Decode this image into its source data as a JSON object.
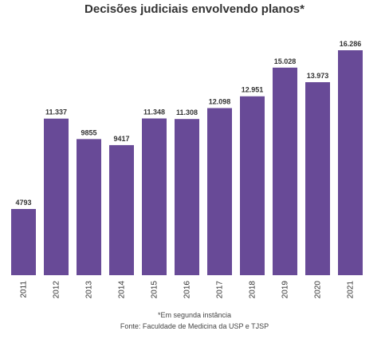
{
  "chart_data": {
    "type": "bar",
    "title": "Decisões judiciais envolvendo planos*",
    "categories": [
      "2011",
      "2012",
      "2013",
      "2014",
      "2015",
      "2016",
      "2017",
      "2018",
      "2019",
      "2020",
      "2021"
    ],
    "values": [
      4793,
      11337,
      9855,
      9417,
      11348,
      11308,
      12098,
      12951,
      15028,
      13973,
      16286
    ],
    "data_labels": [
      "4793",
      "11.337",
      "9855",
      "9417",
      "11.348",
      "11.308",
      "12.098",
      "12.951",
      "15.028",
      "13.973",
      "16.286"
    ],
    "xlabel": "",
    "ylabel": "",
    "ylim": [
      0,
      16286
    ],
    "grid": false,
    "legend": "none",
    "bar_color": "#684a97",
    "notes": [
      "*Em segunda instância",
      "Fonte: Faculdade de Medicina da USP e TJSP"
    ]
  }
}
